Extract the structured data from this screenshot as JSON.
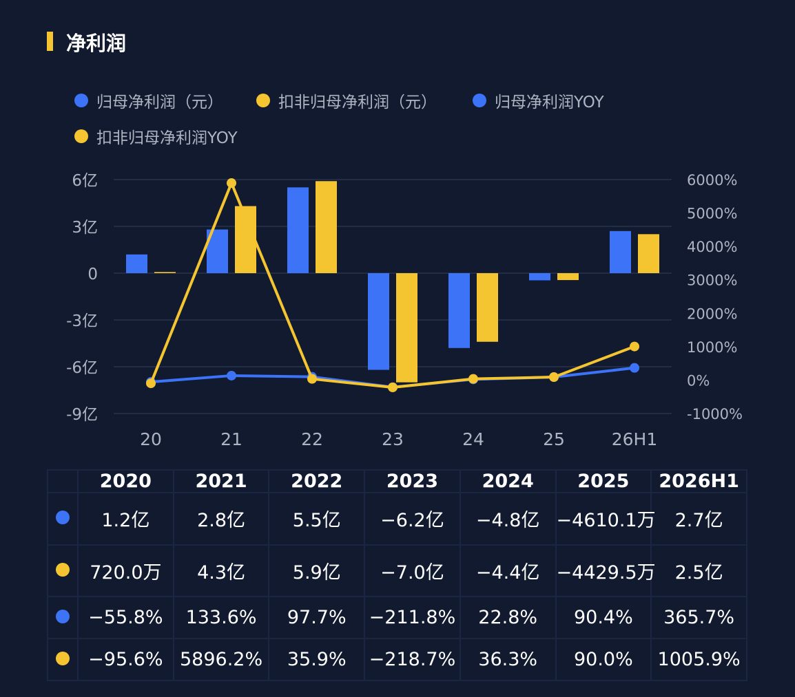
{
  "title": "净利润",
  "colors": {
    "blue": "#3d73f6",
    "yellow": "#f5c531",
    "grid": "#222d45",
    "axis_text": "#aeb4c2"
  },
  "legend": [
    {
      "label": "归母净利润（元）",
      "color": "#3d73f6"
    },
    {
      "label": "扣非归母净利润（元）",
      "color": "#f5c531"
    },
    {
      "label": "归母净利润YOY",
      "color": "#3d73f6"
    },
    {
      "label": "扣非归母净利润YOY",
      "color": "#f5c531"
    }
  ],
  "chart_data": {
    "type": "bar",
    "categories": [
      "20",
      "21",
      "22",
      "23",
      "24",
      "25",
      "26H1"
    ],
    "y_left": {
      "ticks": [
        "6亿",
        "3亿",
        "0",
        "-3亿",
        "-6亿",
        "-9亿"
      ],
      "range": [
        -9,
        6
      ],
      "unit": "亿"
    },
    "y_right": {
      "ticks": [
        "6000%",
        "5000%",
        "4000%",
        "3000%",
        "2000%",
        "1000%",
        "0%",
        "-1000%"
      ],
      "range": [
        -1000,
        6000
      ],
      "unit": "%"
    },
    "grid": true,
    "legend_position": "top-left",
    "series": [
      {
        "name": "归母净利润（元）",
        "kind": "bar",
        "axis": "left",
        "color": "#3d73f6",
        "values": [
          1.2,
          2.8,
          5.5,
          -6.2,
          -4.8,
          -0.461,
          2.7
        ]
      },
      {
        "name": "扣非归母净利润（元）",
        "kind": "bar",
        "axis": "left",
        "color": "#f5c531",
        "values": [
          0.072,
          4.3,
          5.9,
          -7.0,
          -4.4,
          -0.44295,
          2.5
        ]
      },
      {
        "name": "归母净利润YOY",
        "kind": "line",
        "axis": "right",
        "color": "#3d73f6",
        "values": [
          -55.8,
          133.6,
          97.7,
          -211.8,
          22.8,
          90.4,
          365.7
        ]
      },
      {
        "name": "扣非归母净利润YOY",
        "kind": "line",
        "axis": "right",
        "color": "#f5c531",
        "values": [
          -95.6,
          5896.2,
          35.9,
          -218.7,
          36.3,
          90.0,
          1005.9
        ]
      }
    ]
  },
  "table": {
    "headers": [
      "2020",
      "2021",
      "2022",
      "2023",
      "2024",
      "2025",
      "2026H1"
    ],
    "rows": [
      {
        "color": "#3d73f6",
        "cells": [
          "1.2亿",
          "2.8亿",
          "5.5亿",
          "−6.2亿",
          "−4.8亿",
          "−4610.1万",
          "2.7亿"
        ]
      },
      {
        "color": "#f5c531",
        "cells": [
          "720.0万",
          "4.3亿",
          "5.9亿",
          "−7.0亿",
          "−4.4亿",
          "−4429.5万",
          "2.5亿"
        ]
      },
      {
        "color": "#3d73f6",
        "cells": [
          "−55.8%",
          "133.6%",
          "97.7%",
          "−211.8%",
          "22.8%",
          "90.4%",
          "365.7%"
        ]
      },
      {
        "color": "#f5c531",
        "cells": [
          "−95.6%",
          "5896.2%",
          "35.9%",
          "−218.7%",
          "36.3%",
          "90.0%",
          "1005.9%"
        ]
      }
    ]
  }
}
